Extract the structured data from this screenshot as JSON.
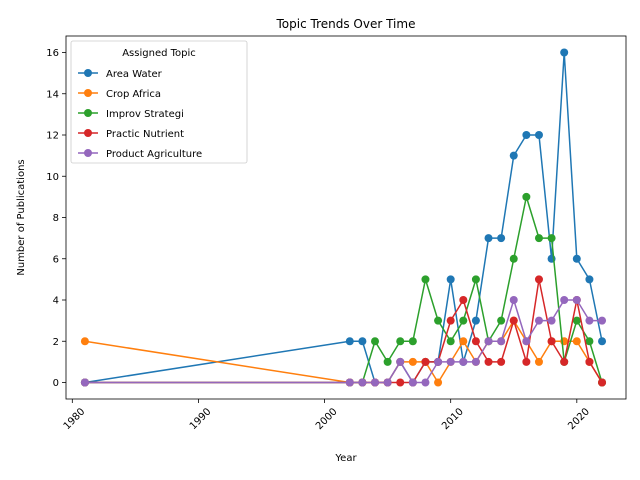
{
  "chart_data": {
    "type": "line",
    "title": "Topic Trends Over Time",
    "xlabel": "Year",
    "ylabel": "Number of Publications",
    "xlim": [
      1979.5,
      2023.9
    ],
    "ylim": [
      -0.8,
      16.8
    ],
    "xticks": [
      1980,
      1990,
      2000,
      2010,
      2020
    ],
    "yticks": [
      0,
      2,
      4,
      6,
      8,
      10,
      12,
      14,
      16
    ],
    "grid": false,
    "legend": {
      "title": "Assigned Topic",
      "placement": "upper-left"
    },
    "series": [
      {
        "name": "Area Water",
        "color": "#1f77b4",
        "x": [
          1981,
          2002,
          2003,
          2004,
          2005,
          2006,
          2007,
          2008,
          2009,
          2010,
          2011,
          2012,
          2013,
          2014,
          2015,
          2016,
          2017,
          2018,
          2019,
          2020,
          2021,
          2022
        ],
        "y": [
          0,
          2,
          2,
          0,
          0,
          1,
          0,
          1,
          1,
          5,
          1,
          3,
          7,
          7,
          11,
          12,
          12,
          6,
          16,
          6,
          5,
          2
        ]
      },
      {
        "name": "Crop Africa",
        "color": "#ff7f0e",
        "x": [
          1981,
          2002,
          2003,
          2004,
          2005,
          2006,
          2007,
          2008,
          2009,
          2010,
          2011,
          2012,
          2013,
          2014,
          2015,
          2016,
          2017,
          2018,
          2019,
          2020,
          2021,
          2022
        ],
        "y": [
          2,
          0,
          0,
          0,
          0,
          1,
          1,
          1,
          0,
          1,
          2,
          1,
          2,
          2,
          3,
          2,
          1,
          2,
          2,
          2,
          1,
          0
        ]
      },
      {
        "name": "Improv Strategi",
        "color": "#2ca02c",
        "x": [
          1981,
          2002,
          2003,
          2004,
          2005,
          2006,
          2007,
          2008,
          2009,
          2010,
          2011,
          2012,
          2013,
          2014,
          2015,
          2016,
          2017,
          2018,
          2019,
          2020,
          2021,
          2022
        ],
        "y": [
          0,
          0,
          0,
          2,
          1,
          2,
          2,
          5,
          3,
          2,
          3,
          5,
          2,
          3,
          6,
          9,
          7,
          7,
          1,
          3,
          2,
          0
        ]
      },
      {
        "name": "Practic Nutrient",
        "color": "#d62728",
        "x": [
          1981,
          2002,
          2003,
          2004,
          2005,
          2006,
          2007,
          2008,
          2009,
          2010,
          2011,
          2012,
          2013,
          2014,
          2015,
          2016,
          2017,
          2018,
          2019,
          2020,
          2021,
          2022
        ],
        "y": [
          0,
          0,
          0,
          0,
          0,
          0,
          0,
          1,
          1,
          3,
          4,
          2,
          1,
          1,
          3,
          1,
          5,
          2,
          1,
          4,
          1,
          0
        ]
      },
      {
        "name": "Product Agriculture",
        "color": "#9467bd",
        "x": [
          1981,
          2002,
          2003,
          2004,
          2005,
          2006,
          2007,
          2008,
          2009,
          2010,
          2011,
          2012,
          2013,
          2014,
          2015,
          2016,
          2017,
          2018,
          2019,
          2020,
          2021,
          2022
        ],
        "y": [
          0,
          0,
          0,
          0,
          0,
          1,
          0,
          0,
          1,
          1,
          1,
          1,
          2,
          2,
          4,
          2,
          3,
          3,
          4,
          4,
          3,
          3
        ]
      }
    ]
  }
}
